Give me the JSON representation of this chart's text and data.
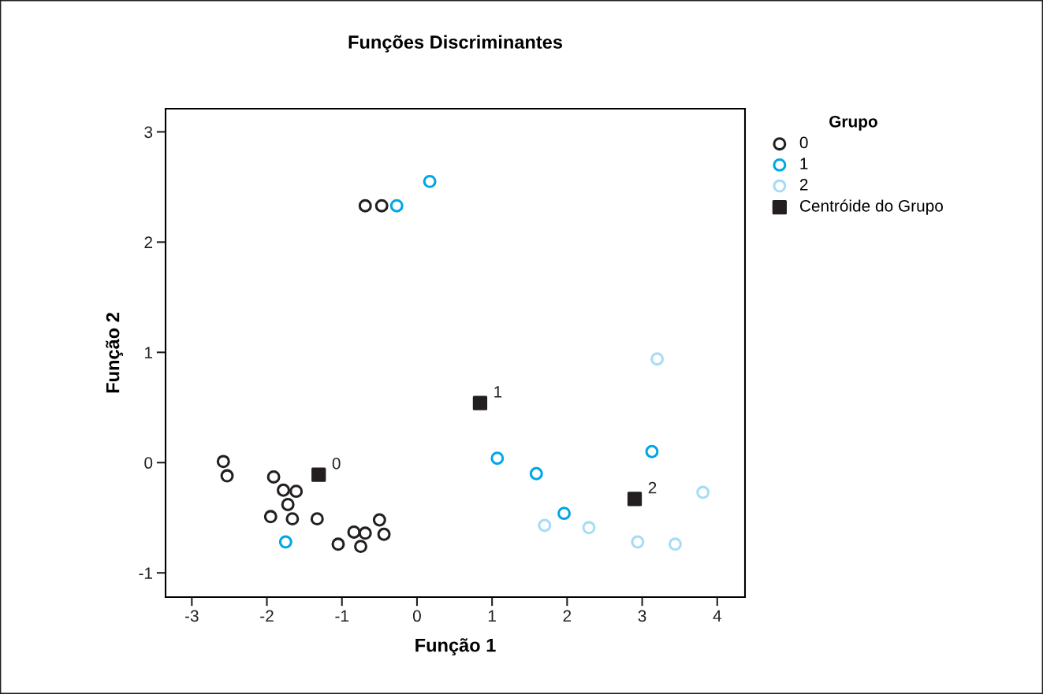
{
  "chart_data": {
    "type": "scatter",
    "title": "Funções Discriminantes",
    "xlabel": "Função 1",
    "ylabel": "Função 2",
    "legend_title": "Grupo",
    "legend": "top right",
    "xlim": [
      -3.35,
      4.37
    ],
    "ylim": [
      -1.22,
      3.21
    ],
    "xticks": [
      -3,
      -2,
      -1,
      0,
      1,
      2,
      3,
      4
    ],
    "yticks": [
      -1,
      0,
      1,
      2,
      3
    ],
    "grid": false,
    "series": [
      {
        "name": "0",
        "color": "#231f20",
        "marker": "circle",
        "x": [
          -0.69,
          -0.47,
          -2.58,
          -2.53,
          -1.91,
          -1.78,
          -1.61,
          -1.72,
          -1.95,
          -1.66,
          -1.33,
          -1.05,
          -0.84,
          -0.69,
          -0.75,
          -0.5,
          -0.44
        ],
        "values": [
          2.33,
          2.33,
          0.01,
          -0.12,
          -0.13,
          -0.25,
          -0.26,
          -0.38,
          -0.49,
          -0.51,
          -0.51,
          -0.74,
          -0.63,
          -0.64,
          -0.76,
          -0.52,
          -0.65
        ]
      },
      {
        "name": "1",
        "color": "#00a6e6",
        "marker": "circle",
        "x": [
          -0.27,
          0.17,
          -1.75,
          1.07,
          1.59,
          1.96,
          3.13
        ],
        "values": [
          2.33,
          2.55,
          -0.72,
          0.04,
          -0.1,
          -0.46,
          0.1
        ]
      },
      {
        "name": "2",
        "color": "#a6dcf5",
        "marker": "circle",
        "x": [
          3.2,
          3.81,
          1.7,
          2.29,
          2.94,
          3.44
        ],
        "values": [
          0.94,
          -0.27,
          -0.57,
          -0.59,
          -0.72,
          -0.74
        ]
      },
      {
        "name": "Centróide do Grupo",
        "color": "#231f20",
        "marker": "square",
        "x": [
          -1.31,
          0.84,
          2.9
        ],
        "values": [
          -0.11,
          0.54,
          -0.33
        ]
      }
    ],
    "annotations": [
      {
        "text": "0",
        "x": -1.31,
        "y": -0.11
      },
      {
        "text": "1",
        "x": 0.84,
        "y": 0.54
      },
      {
        "text": "2",
        "x": 2.9,
        "y": -0.33
      }
    ]
  }
}
